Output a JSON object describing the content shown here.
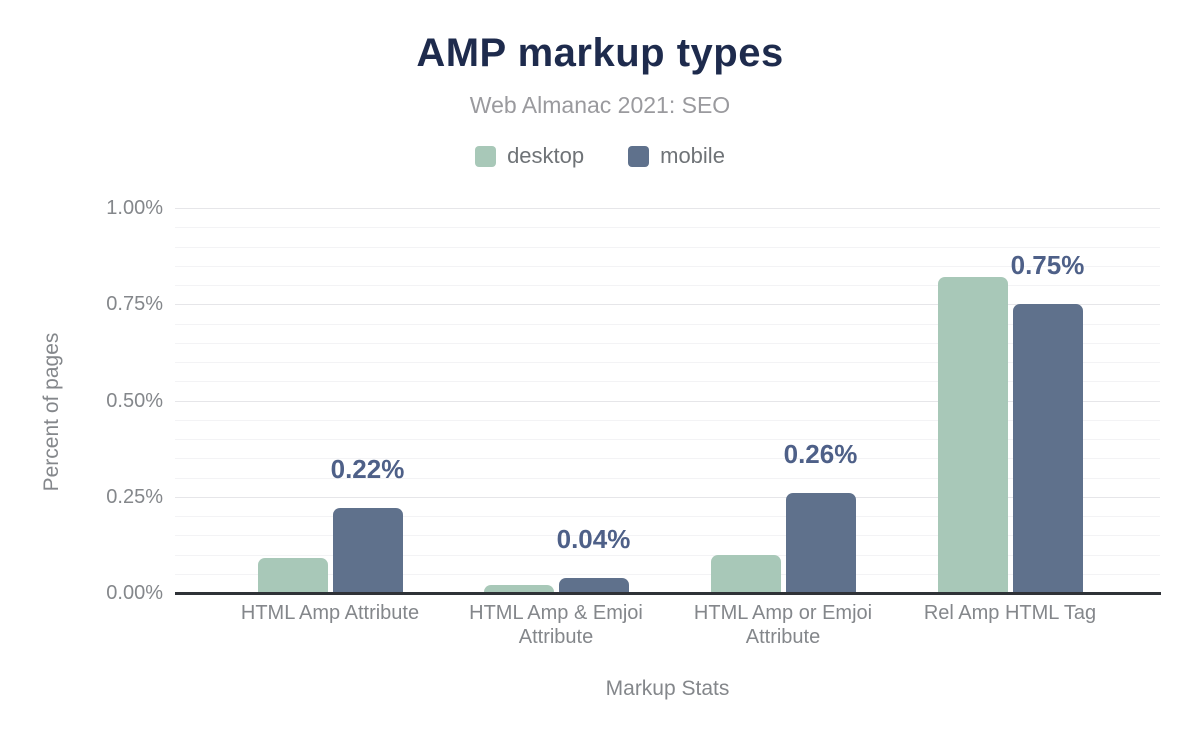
{
  "chart_data": {
    "type": "bar",
    "title": "AMP markup types",
    "subtitle": "Web Almanac 2021: SEO",
    "xlabel": "Markup Stats",
    "ylabel": "Percent of pages",
    "categories": [
      "HTML Amp Attribute",
      "HTML Amp & Emjoi Attribute",
      "HTML Amp or Emjoi Attribute",
      "Rel Amp HTML Tag"
    ],
    "series": [
      {
        "name": "desktop",
        "color": "#a8c8b8",
        "values": [
          0.09,
          0.02,
          0.1,
          0.82
        ]
      },
      {
        "name": "mobile",
        "color": "#5f718c",
        "values": [
          0.22,
          0.04,
          0.26,
          0.75
        ],
        "data_labels": [
          "0.22%",
          "0.04%",
          "0.26%",
          "0.75%"
        ]
      }
    ],
    "value_unit": "%",
    "y_ticks": [
      "0.00%",
      "0.25%",
      "0.50%",
      "0.75%",
      "1.00%"
    ],
    "ylim": [
      0,
      1
    ],
    "y_major_step": 0.25,
    "y_minor_step": 0.05,
    "grid": true,
    "legend_position": "top",
    "colors": {
      "title": "#1e2b4d",
      "subtitle": "#9a9a9e",
      "legend_text": "#6f7377",
      "axis_text": "#84878b",
      "data_label": "#4e6088",
      "axis_line": "#2f3237",
      "grid_major": "#e6e6e9",
      "grid_minor": "#f3f3f5"
    }
  }
}
